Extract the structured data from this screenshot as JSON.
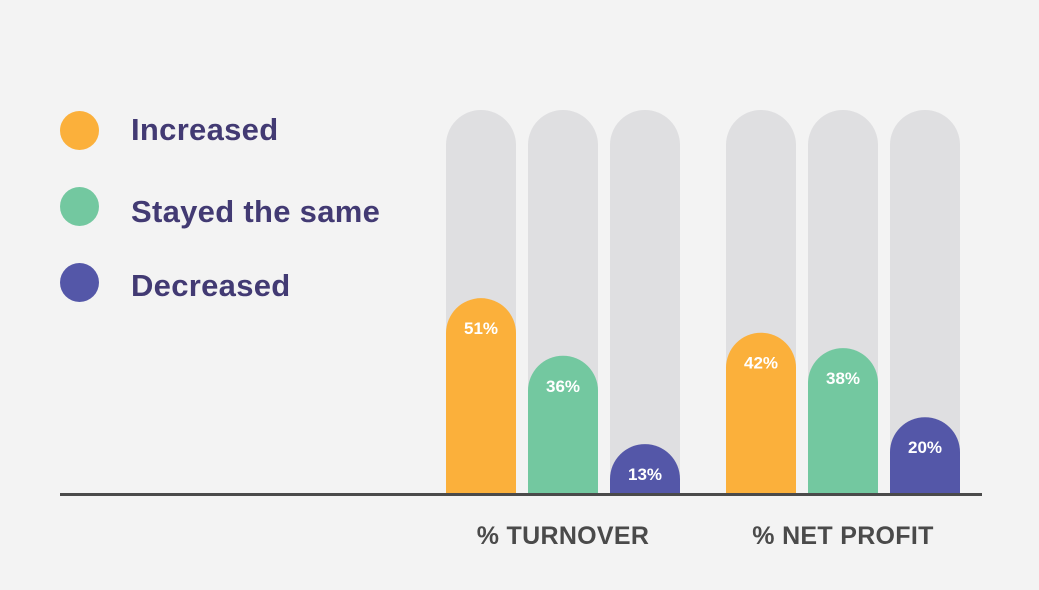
{
  "legend": [
    {
      "label": "Increased",
      "color": "#fbb03b"
    },
    {
      "label": "Stayed the same",
      "color": "#73c8a0"
    },
    {
      "label": "Decreased",
      "color": "#5457a8"
    }
  ],
  "colors": {
    "track": "#dfdfe1",
    "background": "#f3f3f3",
    "axis": "#4a4a4a"
  },
  "chart_data": {
    "type": "bar",
    "categories": [
      "% TURNOVER",
      "% NET PROFIT"
    ],
    "series": [
      {
        "name": "Increased",
        "values": [
          51,
          42
        ]
      },
      {
        "name": "Stayed the same",
        "values": [
          36,
          38
        ]
      },
      {
        "name": "Decreased",
        "values": [
          13,
          20
        ]
      }
    ],
    "value_labels": [
      [
        "51%",
        "42%"
      ],
      [
        "36%",
        "38%"
      ],
      [
        "13%",
        "20%"
      ]
    ],
    "ylim": [
      0,
      100
    ],
    "grid": false,
    "legend_position": "left"
  }
}
